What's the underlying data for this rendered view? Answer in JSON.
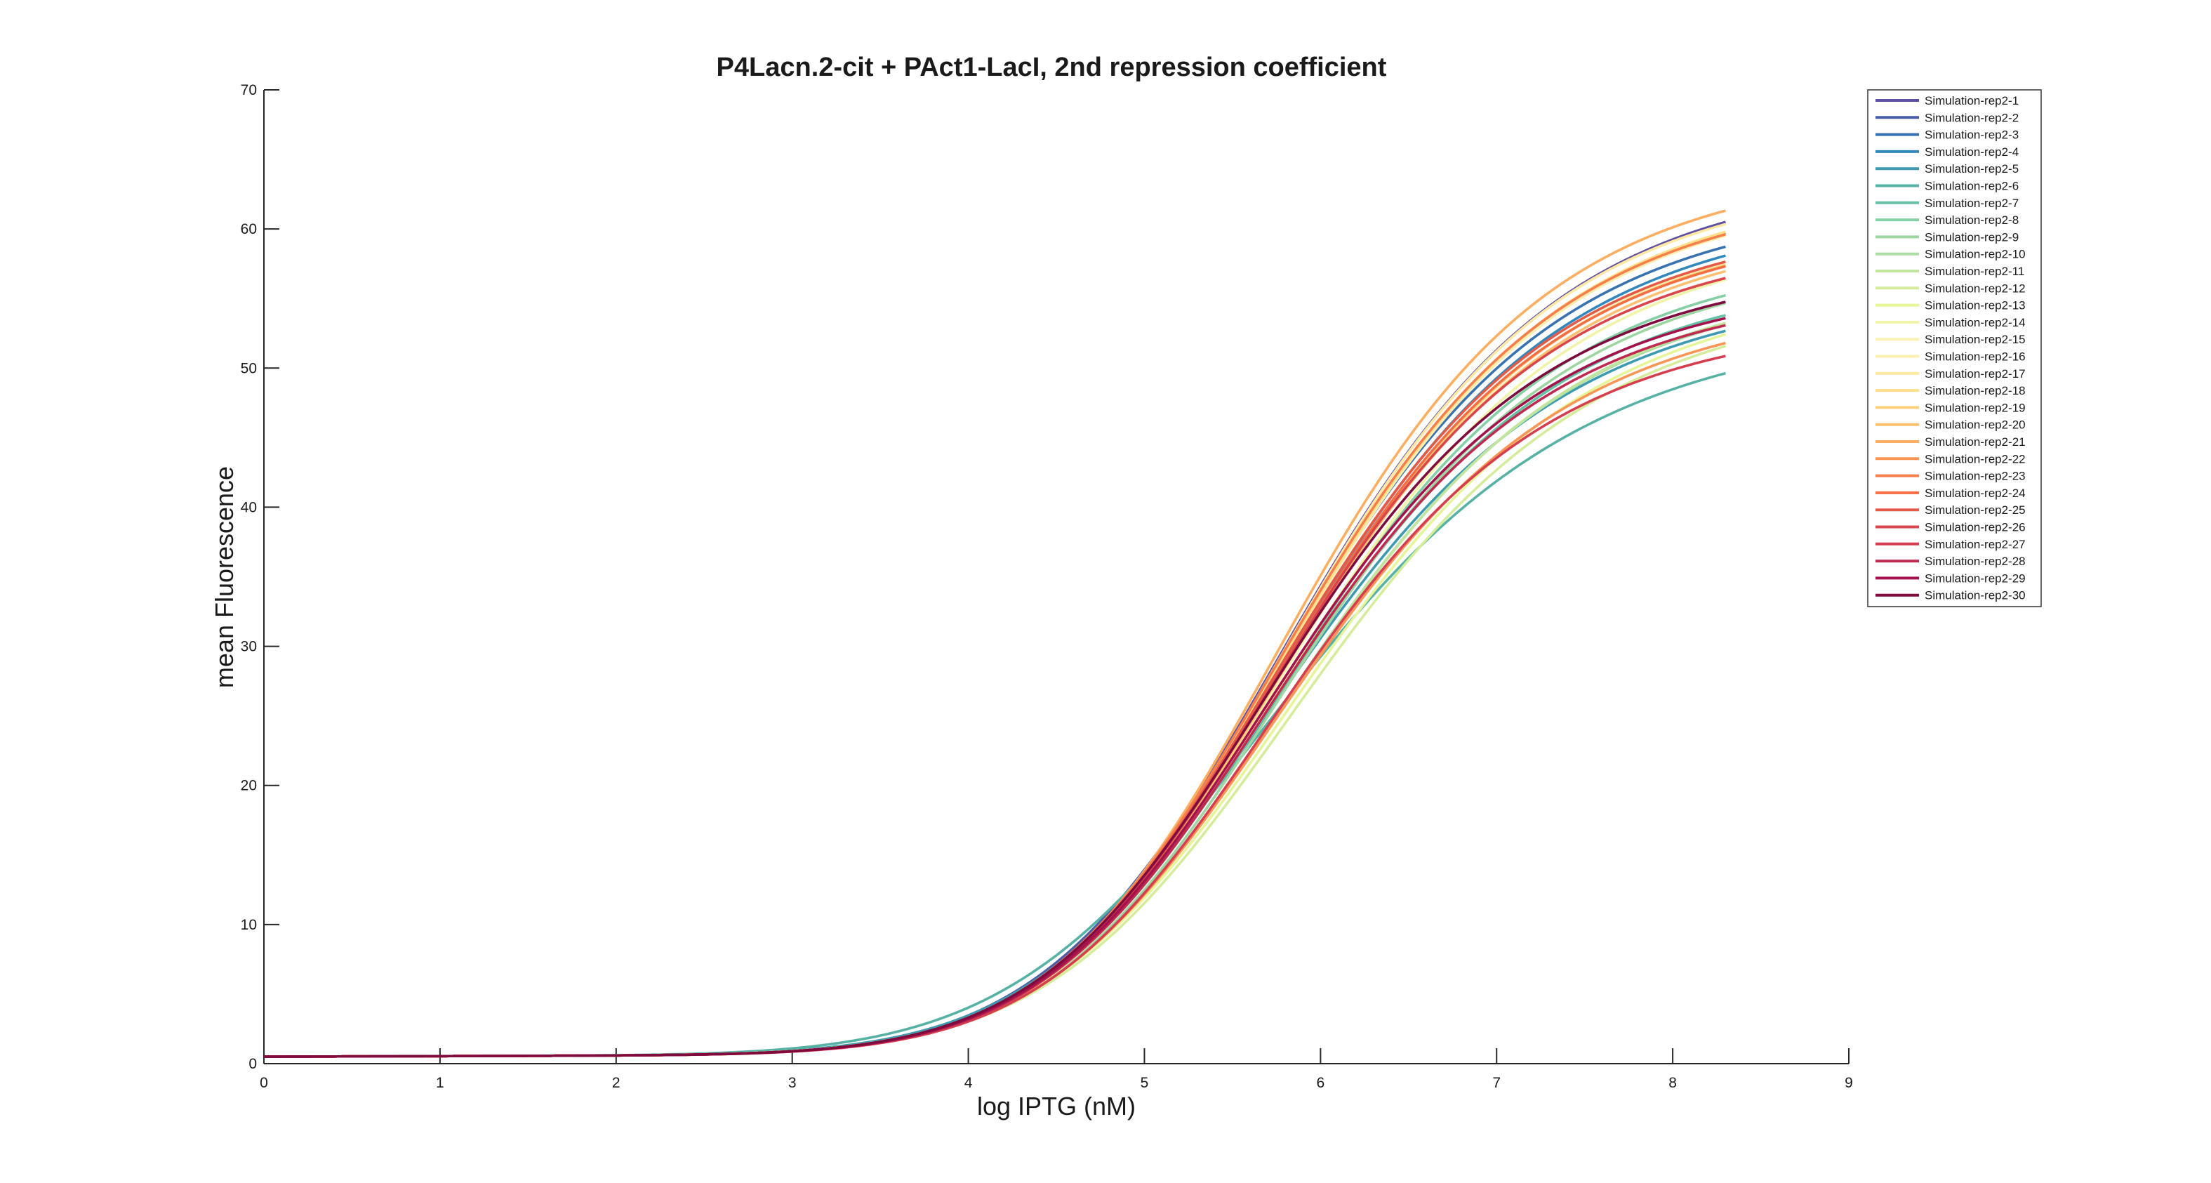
{
  "chart_data": {
    "type": "line",
    "title": "P4Lacn.2-cit + PAct1-LacI, 2nd repression coefficient",
    "xlabel": "log IPTG (nM)",
    "ylabel": "mean Fluorescence",
    "xlim": [
      0,
      9
    ],
    "ylim": [
      0,
      70
    ],
    "xticks": [
      0,
      1,
      2,
      3,
      4,
      5,
      6,
      7,
      8,
      9
    ],
    "yticks": [
      0,
      10,
      20,
      30,
      40,
      50,
      60,
      70
    ],
    "grid": false,
    "legend_position": "top-right",
    "x_range": [
      0,
      8.3
    ],
    "model": "hill",
    "series": [
      {
        "name": "Simulation-rep2-1",
        "color": "#5e4fa2",
        "baseline": 0.5,
        "max": 64.5,
        "half": 5.92,
        "n": 8.0
      },
      {
        "name": "Simulation-rep2-2",
        "color": "#4a5ea8",
        "baseline": 0.5,
        "max": 64.0,
        "half": 5.93,
        "n": 7.8
      },
      {
        "name": "Simulation-rep2-3",
        "color": "#3872b0",
        "baseline": 0.5,
        "max": 62.5,
        "half": 5.9,
        "n": 8.0
      },
      {
        "name": "Simulation-rep2-4",
        "color": "#3288bd",
        "baseline": 0.5,
        "max": 62.0,
        "half": 5.91,
        "n": 7.9
      },
      {
        "name": "Simulation-rep2-5",
        "color": "#3d9ab0",
        "baseline": 0.5,
        "max": 56.5,
        "half": 5.89,
        "n": 7.6
      },
      {
        "name": "Simulation-rep2-6",
        "color": "#55b2a4",
        "baseline": 0.5,
        "max": 54.0,
        "half": 5.88,
        "n": 7.0
      },
      {
        "name": "Simulation-rep2-7",
        "color": "#66c2a5",
        "baseline": 0.5,
        "max": 57.5,
        "half": 5.9,
        "n": 7.8
      },
      {
        "name": "Simulation-rep2-8",
        "color": "#84cfa3",
        "baseline": 0.5,
        "max": 59.0,
        "half": 5.92,
        "n": 7.9
      },
      {
        "name": "Simulation-rep2-9",
        "color": "#9dd6a0",
        "baseline": 0.5,
        "max": 58.5,
        "half": 5.94,
        "n": 7.9
      },
      {
        "name": "Simulation-rep2-10",
        "color": "#abdda4",
        "baseline": 0.5,
        "max": 57.0,
        "half": 5.95,
        "n": 7.8
      },
      {
        "name": "Simulation-rep2-11",
        "color": "#c2e59e",
        "baseline": 0.5,
        "max": 57.2,
        "half": 5.96,
        "n": 7.8
      },
      {
        "name": "Simulation-rep2-12",
        "color": "#d5ec9a",
        "baseline": 0.5,
        "max": 56.0,
        "half": 6.02,
        "n": 7.6
      },
      {
        "name": "Simulation-rep2-13",
        "color": "#e6f598",
        "baseline": 0.5,
        "max": 56.8,
        "half": 6.0,
        "n": 7.6
      },
      {
        "name": "Simulation-rep2-14",
        "color": "#f1f4a8",
        "baseline": 0.5,
        "max": 60.5,
        "half": 5.95,
        "n": 7.8
      },
      {
        "name": "Simulation-rep2-15",
        "color": "#f8f2b4",
        "baseline": 0.5,
        "max": 61.5,
        "half": 5.94,
        "n": 8.0
      },
      {
        "name": "Simulation-rep2-16",
        "color": "#fbeeb0",
        "baseline": 0.5,
        "max": 63.5,
        "half": 5.93,
        "n": 8.0
      },
      {
        "name": "Simulation-rep2-17",
        "color": "#fee8a2",
        "baseline": 0.5,
        "max": 64.2,
        "half": 5.92,
        "n": 8.1
      },
      {
        "name": "Simulation-rep2-18",
        "color": "#fee08b",
        "baseline": 0.5,
        "max": 63.8,
        "half": 5.93,
        "n": 8.0
      },
      {
        "name": "Simulation-rep2-19",
        "color": "#fdd07c",
        "baseline": 0.5,
        "max": 61.2,
        "half": 5.92,
        "n": 8.0
      },
      {
        "name": "Simulation-rep2-20",
        "color": "#fdc070",
        "baseline": 0.5,
        "max": 60.8,
        "half": 5.91,
        "n": 7.9
      },
      {
        "name": "Simulation-rep2-21",
        "color": "#fdae61",
        "baseline": 0.5,
        "max": 65.0,
        "half": 5.9,
        "n": 8.2
      },
      {
        "name": "Simulation-rep2-22",
        "color": "#f99656",
        "baseline": 0.5,
        "max": 55.5,
        "half": 5.93,
        "n": 7.8
      },
      {
        "name": "Simulation-rep2-23",
        "color": "#f67f4b",
        "baseline": 0.5,
        "max": 63.5,
        "half": 5.91,
        "n": 8.0
      },
      {
        "name": "Simulation-rep2-24",
        "color": "#f46d43",
        "baseline": 0.5,
        "max": 61.0,
        "half": 5.9,
        "n": 8.0
      },
      {
        "name": "Simulation-rep2-25",
        "color": "#e55a47",
        "baseline": 0.5,
        "max": 61.3,
        "half": 5.89,
        "n": 8.0
      },
      {
        "name": "Simulation-rep2-26",
        "color": "#d8464c",
        "baseline": 0.5,
        "max": 60.0,
        "half": 5.88,
        "n": 8.0
      },
      {
        "name": "Simulation-rep2-27",
        "color": "#d53e4f",
        "baseline": 0.5,
        "max": 54.0,
        "half": 5.87,
        "n": 8.0
      },
      {
        "name": "Simulation-rep2-28",
        "color": "#c02a50",
        "baseline": 0.5,
        "max": 56.3,
        "half": 5.86,
        "n": 8.0
      },
      {
        "name": "Simulation-rep2-29",
        "color": "#a4124d",
        "baseline": 0.5,
        "max": 56.8,
        "half": 5.85,
        "n": 8.0
      },
      {
        "name": "Simulation-rep2-30",
        "color": "#7e0a3e",
        "baseline": 0.5,
        "max": 58.0,
        "half": 5.84,
        "n": 8.0
      }
    ]
  }
}
